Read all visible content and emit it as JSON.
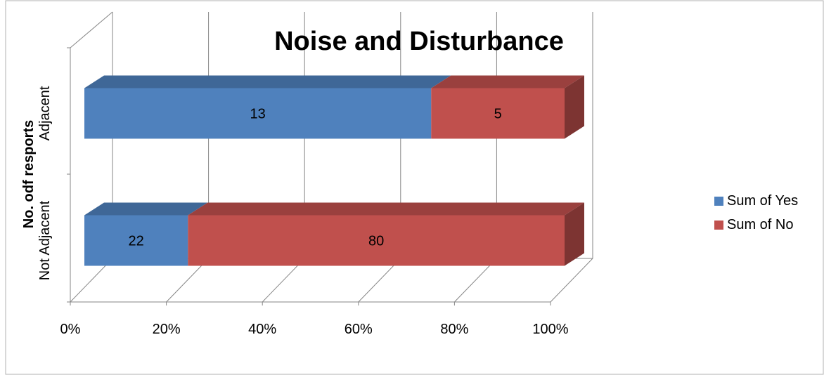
{
  "chart_data": {
    "type": "bar",
    "orientation": "horizontal",
    "stacking": "percent",
    "three_d": true,
    "title": "Noise and Disturbance",
    "xlabel": "",
    "ylabel": "No. odf resports",
    "xlim": [
      0,
      100
    ],
    "x_ticks": [
      "0%",
      "20%",
      "40%",
      "60%",
      "80%",
      "100%"
    ],
    "categories": [
      "Adjacent",
      "Not Adjacent"
    ],
    "series": [
      {
        "name": "Sum of Yes",
        "values": [
          13,
          22
        ],
        "color": "#4F81BD"
      },
      {
        "name": "Sum of No",
        "values": [
          5,
          80
        ],
        "color": "#C0504D"
      }
    ],
    "grid": true,
    "legend_position": "right"
  }
}
